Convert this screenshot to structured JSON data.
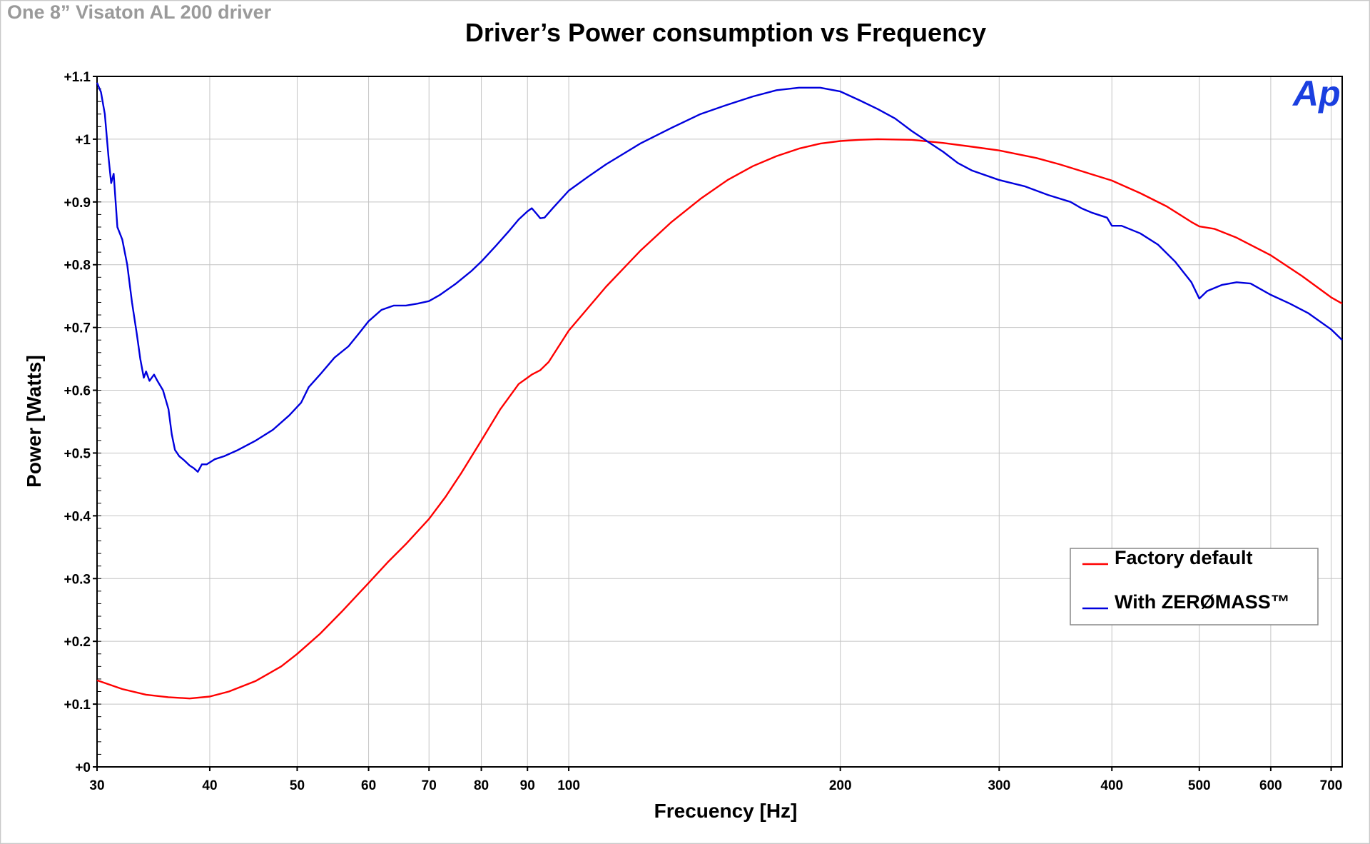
{
  "caption": "One 8” Visaton AL 200 driver",
  "logo": {
    "text": "Ap",
    "color": "#1a3fe0"
  },
  "chart_data": {
    "type": "line",
    "title": "Driver’s Power consumption vs Frequency",
    "xlabel": "Frecuency [Hz]",
    "ylabel": "Power [Watts]",
    "xscale": "log",
    "xlim": [
      30,
      720
    ],
    "ylim": [
      0,
      1.1
    ],
    "grid": true,
    "legend_position": "bottom-right",
    "x_ticks": [
      {
        "value": 30,
        "label": "30"
      },
      {
        "value": 40,
        "label": "40"
      },
      {
        "value": 50,
        "label": "50"
      },
      {
        "value": 60,
        "label": "60"
      },
      {
        "value": 70,
        "label": "70"
      },
      {
        "value": 80,
        "label": "80"
      },
      {
        "value": 90,
        "label": "90"
      },
      {
        "value": 100,
        "label": "100"
      },
      {
        "value": 200,
        "label": "200"
      },
      {
        "value": 300,
        "label": "300"
      },
      {
        "value": 400,
        "label": "400"
      },
      {
        "value": 500,
        "label": "500"
      },
      {
        "value": 600,
        "label": "600"
      },
      {
        "value": 700,
        "label": "700"
      }
    ],
    "y_ticks": [
      {
        "value": 0,
        "label": "+0"
      },
      {
        "value": 0.1,
        "label": "+0.1"
      },
      {
        "value": 0.2,
        "label": "+0.2"
      },
      {
        "value": 0.3,
        "label": "+0.3"
      },
      {
        "value": 0.4,
        "label": "+0.4"
      },
      {
        "value": 0.5,
        "label": "+0.5"
      },
      {
        "value": 0.6,
        "label": "+0.6"
      },
      {
        "value": 0.7,
        "label": "+0.7"
      },
      {
        "value": 0.8,
        "label": "+0.8"
      },
      {
        "value": 0.9,
        "label": "+0.9"
      },
      {
        "value": 1.0,
        "label": "+1"
      },
      {
        "value": 1.1,
        "label": "+1.1"
      }
    ],
    "series": [
      {
        "name": "Factory default",
        "color": "#ff0000",
        "points": [
          [
            30,
            0.138
          ],
          [
            32,
            0.124
          ],
          [
            34,
            0.115
          ],
          [
            36,
            0.111
          ],
          [
            38,
            0.109
          ],
          [
            40,
            0.112
          ],
          [
            42,
            0.12
          ],
          [
            45,
            0.137
          ],
          [
            48,
            0.16
          ],
          [
            50,
            0.18
          ],
          [
            53,
            0.212
          ],
          [
            56,
            0.247
          ],
          [
            60,
            0.293
          ],
          [
            63,
            0.326
          ],
          [
            66,
            0.355
          ],
          [
            70,
            0.395
          ],
          [
            73,
            0.43
          ],
          [
            76,
            0.468
          ],
          [
            80,
            0.52
          ],
          [
            84,
            0.57
          ],
          [
            88,
            0.61
          ],
          [
            91,
            0.625
          ],
          [
            93,
            0.632
          ],
          [
            95,
            0.645
          ],
          [
            100,
            0.695
          ],
          [
            110,
            0.765
          ],
          [
            120,
            0.822
          ],
          [
            130,
            0.868
          ],
          [
            140,
            0.905
          ],
          [
            150,
            0.935
          ],
          [
            160,
            0.957
          ],
          [
            170,
            0.973
          ],
          [
            180,
            0.985
          ],
          [
            190,
            0.993
          ],
          [
            200,
            0.997
          ],
          [
            210,
            0.999
          ],
          [
            220,
            1.0
          ],
          [
            240,
            0.999
          ],
          [
            260,
            0.994
          ],
          [
            280,
            0.988
          ],
          [
            300,
            0.982
          ],
          [
            330,
            0.97
          ],
          [
            350,
            0.96
          ],
          [
            380,
            0.944
          ],
          [
            400,
            0.934
          ],
          [
            430,
            0.914
          ],
          [
            460,
            0.893
          ],
          [
            490,
            0.868
          ],
          [
            500,
            0.861
          ],
          [
            520,
            0.857
          ],
          [
            550,
            0.843
          ],
          [
            600,
            0.815
          ],
          [
            650,
            0.782
          ],
          [
            700,
            0.748
          ],
          [
            720,
            0.738
          ]
        ]
      },
      {
        "name": "With ZERØMASS™",
        "color": "#0000dd",
        "points": [
          [
            30,
            1.09
          ],
          [
            30.3,
            1.075
          ],
          [
            30.6,
            1.04
          ],
          [
            30.9,
            0.97
          ],
          [
            31.1,
            0.93
          ],
          [
            31.3,
            0.945
          ],
          [
            31.6,
            0.86
          ],
          [
            32,
            0.84
          ],
          [
            32.4,
            0.8
          ],
          [
            32.8,
            0.74
          ],
          [
            33.2,
            0.69
          ],
          [
            33.5,
            0.65
          ],
          [
            33.8,
            0.62
          ],
          [
            34,
            0.63
          ],
          [
            34.3,
            0.615
          ],
          [
            34.7,
            0.625
          ],
          [
            35,
            0.615
          ],
          [
            35.5,
            0.6
          ],
          [
            36,
            0.57
          ],
          [
            36.3,
            0.53
          ],
          [
            36.6,
            0.505
          ],
          [
            37,
            0.495
          ],
          [
            37.5,
            0.488
          ],
          [
            38,
            0.48
          ],
          [
            38.4,
            0.476
          ],
          [
            38.8,
            0.47
          ],
          [
            39.2,
            0.482
          ],
          [
            39.7,
            0.482
          ],
          [
            40.5,
            0.49
          ],
          [
            41.5,
            0.495
          ],
          [
            43,
            0.505
          ],
          [
            45,
            0.52
          ],
          [
            47,
            0.537
          ],
          [
            49,
            0.56
          ],
          [
            50.5,
            0.58
          ],
          [
            51.5,
            0.605
          ],
          [
            53,
            0.625
          ],
          [
            55,
            0.652
          ],
          [
            57,
            0.67
          ],
          [
            58.5,
            0.69
          ],
          [
            60,
            0.71
          ],
          [
            62,
            0.728
          ],
          [
            64,
            0.735
          ],
          [
            66,
            0.735
          ],
          [
            68,
            0.738
          ],
          [
            70,
            0.742
          ],
          [
            72,
            0.752
          ],
          [
            75,
            0.77
          ],
          [
            78,
            0.79
          ],
          [
            80,
            0.805
          ],
          [
            83,
            0.83
          ],
          [
            86,
            0.855
          ],
          [
            88,
            0.872
          ],
          [
            90,
            0.885
          ],
          [
            91,
            0.89
          ],
          [
            92,
            0.882
          ],
          [
            93,
            0.874
          ],
          [
            94,
            0.875
          ],
          [
            96,
            0.89
          ],
          [
            100,
            0.918
          ],
          [
            105,
            0.94
          ],
          [
            110,
            0.96
          ],
          [
            120,
            0.993
          ],
          [
            130,
            1.018
          ],
          [
            140,
            1.04
          ],
          [
            150,
            1.055
          ],
          [
            160,
            1.068
          ],
          [
            170,
            1.078
          ],
          [
            180,
            1.082
          ],
          [
            190,
            1.082
          ],
          [
            200,
            1.076
          ],
          [
            210,
            1.062
          ],
          [
            220,
            1.048
          ],
          [
            230,
            1.033
          ],
          [
            240,
            1.013
          ],
          [
            250,
            0.996
          ],
          [
            260,
            0.98
          ],
          [
            270,
            0.962
          ],
          [
            280,
            0.95
          ],
          [
            300,
            0.935
          ],
          [
            320,
            0.925
          ],
          [
            340,
            0.911
          ],
          [
            360,
            0.9
          ],
          [
            370,
            0.89
          ],
          [
            380,
            0.883
          ],
          [
            395,
            0.875
          ],
          [
            400,
            0.862
          ],
          [
            410,
            0.862
          ],
          [
            430,
            0.85
          ],
          [
            450,
            0.832
          ],
          [
            470,
            0.805
          ],
          [
            490,
            0.772
          ],
          [
            500,
            0.746
          ],
          [
            510,
            0.758
          ],
          [
            530,
            0.768
          ],
          [
            550,
            0.772
          ],
          [
            570,
            0.77
          ],
          [
            600,
            0.752
          ],
          [
            630,
            0.738
          ],
          [
            660,
            0.723
          ],
          [
            700,
            0.697
          ],
          [
            720,
            0.68
          ]
        ]
      }
    ]
  }
}
